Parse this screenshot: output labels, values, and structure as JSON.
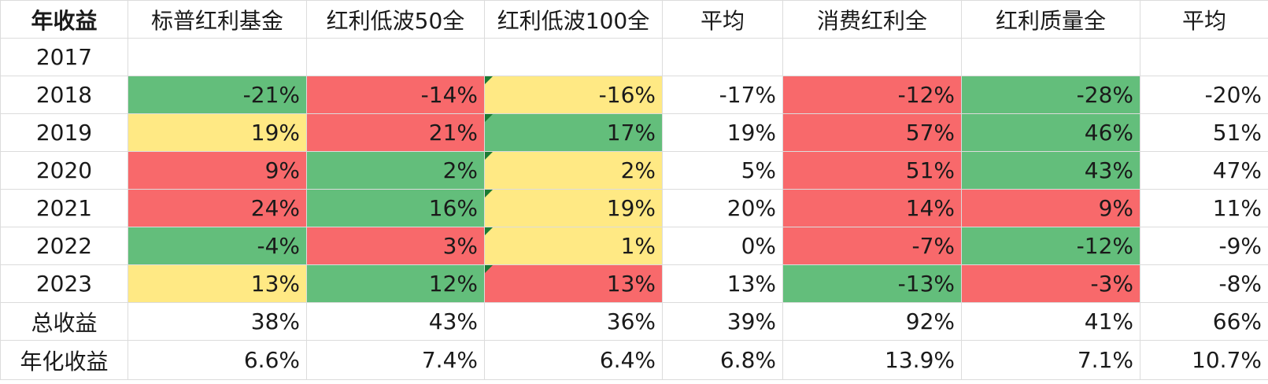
{
  "colors": {
    "green": "#63be7b",
    "yellow": "#ffe984",
    "red": "#f8696b",
    "comment_marker": "#1b7a33"
  },
  "header": {
    "corner": "年收益",
    "columns": [
      "标普红利基金",
      "红利低波50全",
      "红利低波100全",
      "平均",
      "消费红利全",
      "红利质量全",
      "平均"
    ]
  },
  "rows": [
    {
      "label": "2017",
      "cells": [
        "",
        "",
        "",
        "",
        "",
        "",
        ""
      ],
      "colors": [
        "",
        "",
        "",
        "",
        "",
        "",
        ""
      ]
    },
    {
      "label": "2018",
      "cells": [
        "-21%",
        "-14%",
        "-16%",
        "-17%",
        "-12%",
        "-28%",
        "-20%"
      ],
      "colors": [
        "green",
        "red",
        "yellow",
        "",
        "red",
        "green",
        ""
      ]
    },
    {
      "label": "2019",
      "cells": [
        "19%",
        "21%",
        "17%",
        "19%",
        "57%",
        "46%",
        "51%"
      ],
      "colors": [
        "yellow",
        "red",
        "green",
        "",
        "red",
        "green",
        ""
      ]
    },
    {
      "label": "2020",
      "cells": [
        "9%",
        "2%",
        "2%",
        "5%",
        "51%",
        "43%",
        "47%"
      ],
      "colors": [
        "red",
        "green",
        "yellow",
        "",
        "red",
        "green",
        ""
      ]
    },
    {
      "label": "2021",
      "cells": [
        "24%",
        "16%",
        "19%",
        "20%",
        "14%",
        "9%",
        "11%"
      ],
      "colors": [
        "red",
        "green",
        "yellow",
        "",
        "red",
        "red",
        ""
      ]
    },
    {
      "label": "2022",
      "cells": [
        "-4%",
        "3%",
        "1%",
        "0%",
        "-7%",
        "-12%",
        "-9%"
      ],
      "colors": [
        "green",
        "red",
        "yellow",
        "",
        "red",
        "green",
        ""
      ]
    },
    {
      "label": "2023",
      "cells": [
        "13%",
        "12%",
        "13%",
        "13%",
        "-13%",
        "-3%",
        "-8%"
      ],
      "colors": [
        "yellow",
        "green",
        "red",
        "",
        "green",
        "red",
        ""
      ]
    },
    {
      "label": "总收益",
      "cells": [
        "38%",
        "43%",
        "36%",
        "39%",
        "92%",
        "41%",
        "66%"
      ],
      "colors": [
        "",
        "",
        "",
        "",
        "",
        "",
        ""
      ]
    },
    {
      "label": "年化收益",
      "cells": [
        "6.6%",
        "7.4%",
        "6.4%",
        "6.8%",
        "13.9%",
        "7.1%",
        "10.7%"
      ],
      "colors": [
        "",
        "",
        "",
        "",
        "",
        "",
        ""
      ]
    }
  ]
}
